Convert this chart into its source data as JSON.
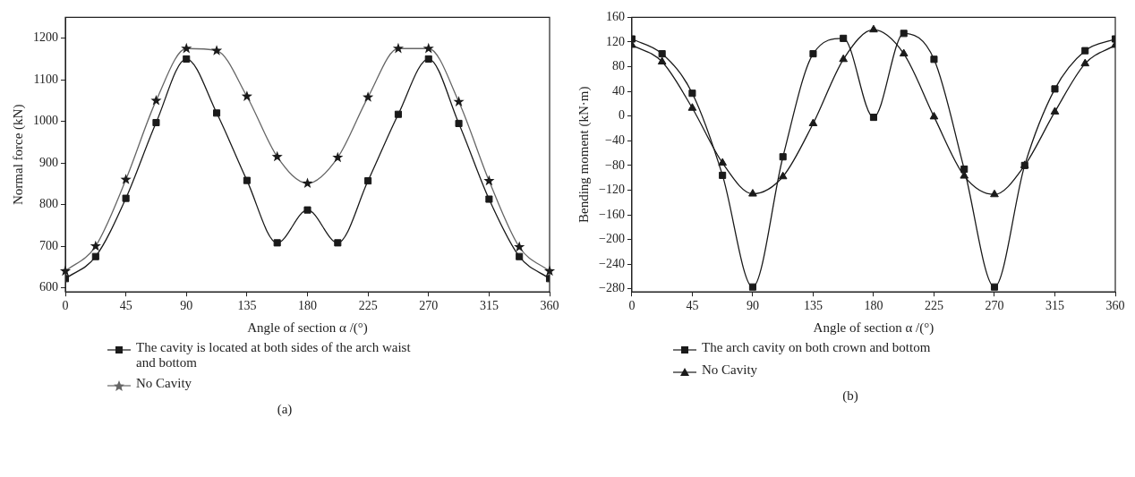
{
  "chart_data": [
    {
      "type": "line",
      "xlabel": "Angle of section α /(°)",
      "ylabel": "Normal force (kN)",
      "x": [
        0,
        22.5,
        45,
        67.5,
        90,
        112.5,
        135,
        157.5,
        180,
        202.5,
        225,
        247.5,
        270,
        292.5,
        315,
        337.5,
        360
      ],
      "series": [
        {
          "name": "The cavity is located at both sides of the arch waist and bottom",
          "color": "#1a1a1a",
          "marker": "square",
          "values": [
            622,
            675,
            815,
            997,
            1150,
            1020,
            858,
            708,
            787,
            708,
            857,
            1017,
            1150,
            995,
            813,
            675,
            622
          ]
        },
        {
          "name": "No Cavity",
          "color": "#666666",
          "marker": "star",
          "values": [
            640,
            700,
            860,
            1050,
            1175,
            1170,
            1060,
            915,
            851,
            913,
            1058,
            1175,
            1175,
            1047,
            857,
            698,
            640
          ]
        }
      ],
      "xlim": [
        0,
        360
      ],
      "xticks": [
        0,
        45,
        90,
        135,
        180,
        225,
        270,
        315,
        360
      ],
      "ylim": [
        590,
        1250
      ],
      "yticks": [
        600,
        700,
        800,
        900,
        1000,
        1100,
        1200
      ],
      "grid": false,
      "legend": "bottom",
      "line_style": "solid",
      "annotations": [
        "(a)"
      ]
    },
    {
      "type": "line",
      "xlabel": "Angle of section α /(°)",
      "ylabel": "Bending moment (kN·m)",
      "x": [
        0,
        22.5,
        45,
        67.5,
        90,
        112.5,
        135,
        157.5,
        180,
        202.5,
        225,
        247.5,
        270,
        292.5,
        315,
        337.5,
        360
      ],
      "series": [
        {
          "name": "The arch cavity on both crown and bottom",
          "color": "#1a1a1a",
          "marker": "square",
          "values": [
            125,
            101,
            37,
            -96,
            -277,
            -66,
            101,
            126,
            -2,
            134,
            92,
            -86,
            -277,
            -80,
            44,
            106,
            125
          ]
        },
        {
          "name": "No Cavity",
          "color": "#1a1a1a",
          "marker": "triangle",
          "values": [
            115,
            88,
            13,
            -76,
            -126,
            -98,
            -12,
            92,
            140,
            101,
            -1,
            -97,
            -127,
            -80,
            7,
            85,
            115
          ]
        }
      ],
      "xlim": [
        0,
        360
      ],
      "xticks": [
        0,
        45,
        90,
        135,
        180,
        225,
        270,
        315,
        360
      ],
      "ylim": [
        -285,
        160
      ],
      "yticks": [
        -280,
        -240,
        -200,
        -160,
        -120,
        -80,
        -40,
        0,
        40,
        80,
        120,
        160
      ],
      "grid": false,
      "legend": "bottom",
      "line_style": "solid",
      "annotations": [
        "(b)"
      ]
    }
  ]
}
